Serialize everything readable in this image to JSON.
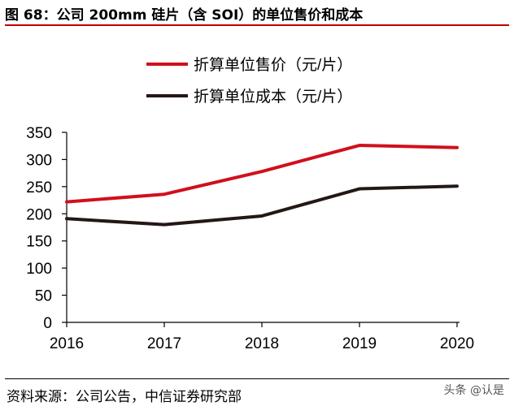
{
  "header": {
    "title": "图 68：公司 200mm 硅片（含 SOI）的单位售价和成本"
  },
  "footer": {
    "source": "资料来源：公司公告，中信证券研究部",
    "watermark": "头条 @认是"
  },
  "colors": {
    "accent": "#c00000",
    "price": "#d0101c",
    "cost": "#231815"
  },
  "chart_data": {
    "type": "line",
    "x": [
      "2016",
      "2017",
      "2018",
      "2019",
      "2020"
    ],
    "series": [
      {
        "name": "折算单位售价（元/片）",
        "values": [
          222,
          236,
          278,
          326,
          322
        ]
      },
      {
        "name": "折算单位成本（元/片）",
        "values": [
          191,
          180,
          196,
          246,
          251
        ]
      }
    ],
    "yticks": [
      "0",
      "50",
      "100",
      "150",
      "200",
      "250",
      "300",
      "350"
    ],
    "ylim": [
      0,
      350
    ],
    "grid": false,
    "legend": "top"
  }
}
